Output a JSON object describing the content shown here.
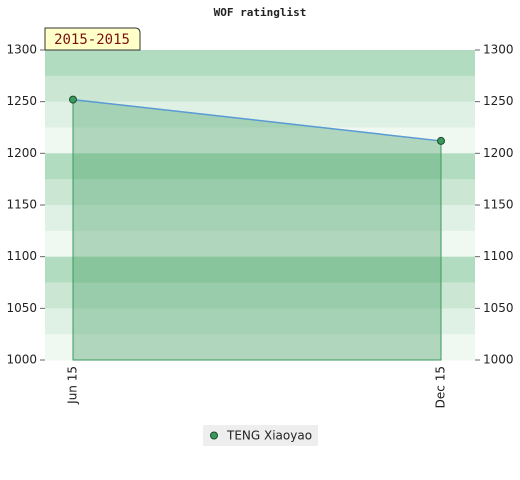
{
  "chart_data": {
    "type": "line",
    "title": "WOF ratinglist",
    "period_label": "2015-2015",
    "categories": [
      "Jun 15",
      "Dec 15"
    ],
    "series": [
      {
        "name": "TENG Xiaoyao",
        "color": "#3a9a5c",
        "values": [
          1252,
          1212
        ]
      }
    ],
    "ylim": [
      1000,
      1300
    ],
    "yticks": [
      1000,
      1050,
      1100,
      1150,
      1200,
      1250,
      1300
    ],
    "y2lim": [
      1000,
      1300
    ],
    "y2ticks": [
      1000,
      1050,
      1100,
      1150,
      1200,
      1250,
      1300
    ]
  }
}
